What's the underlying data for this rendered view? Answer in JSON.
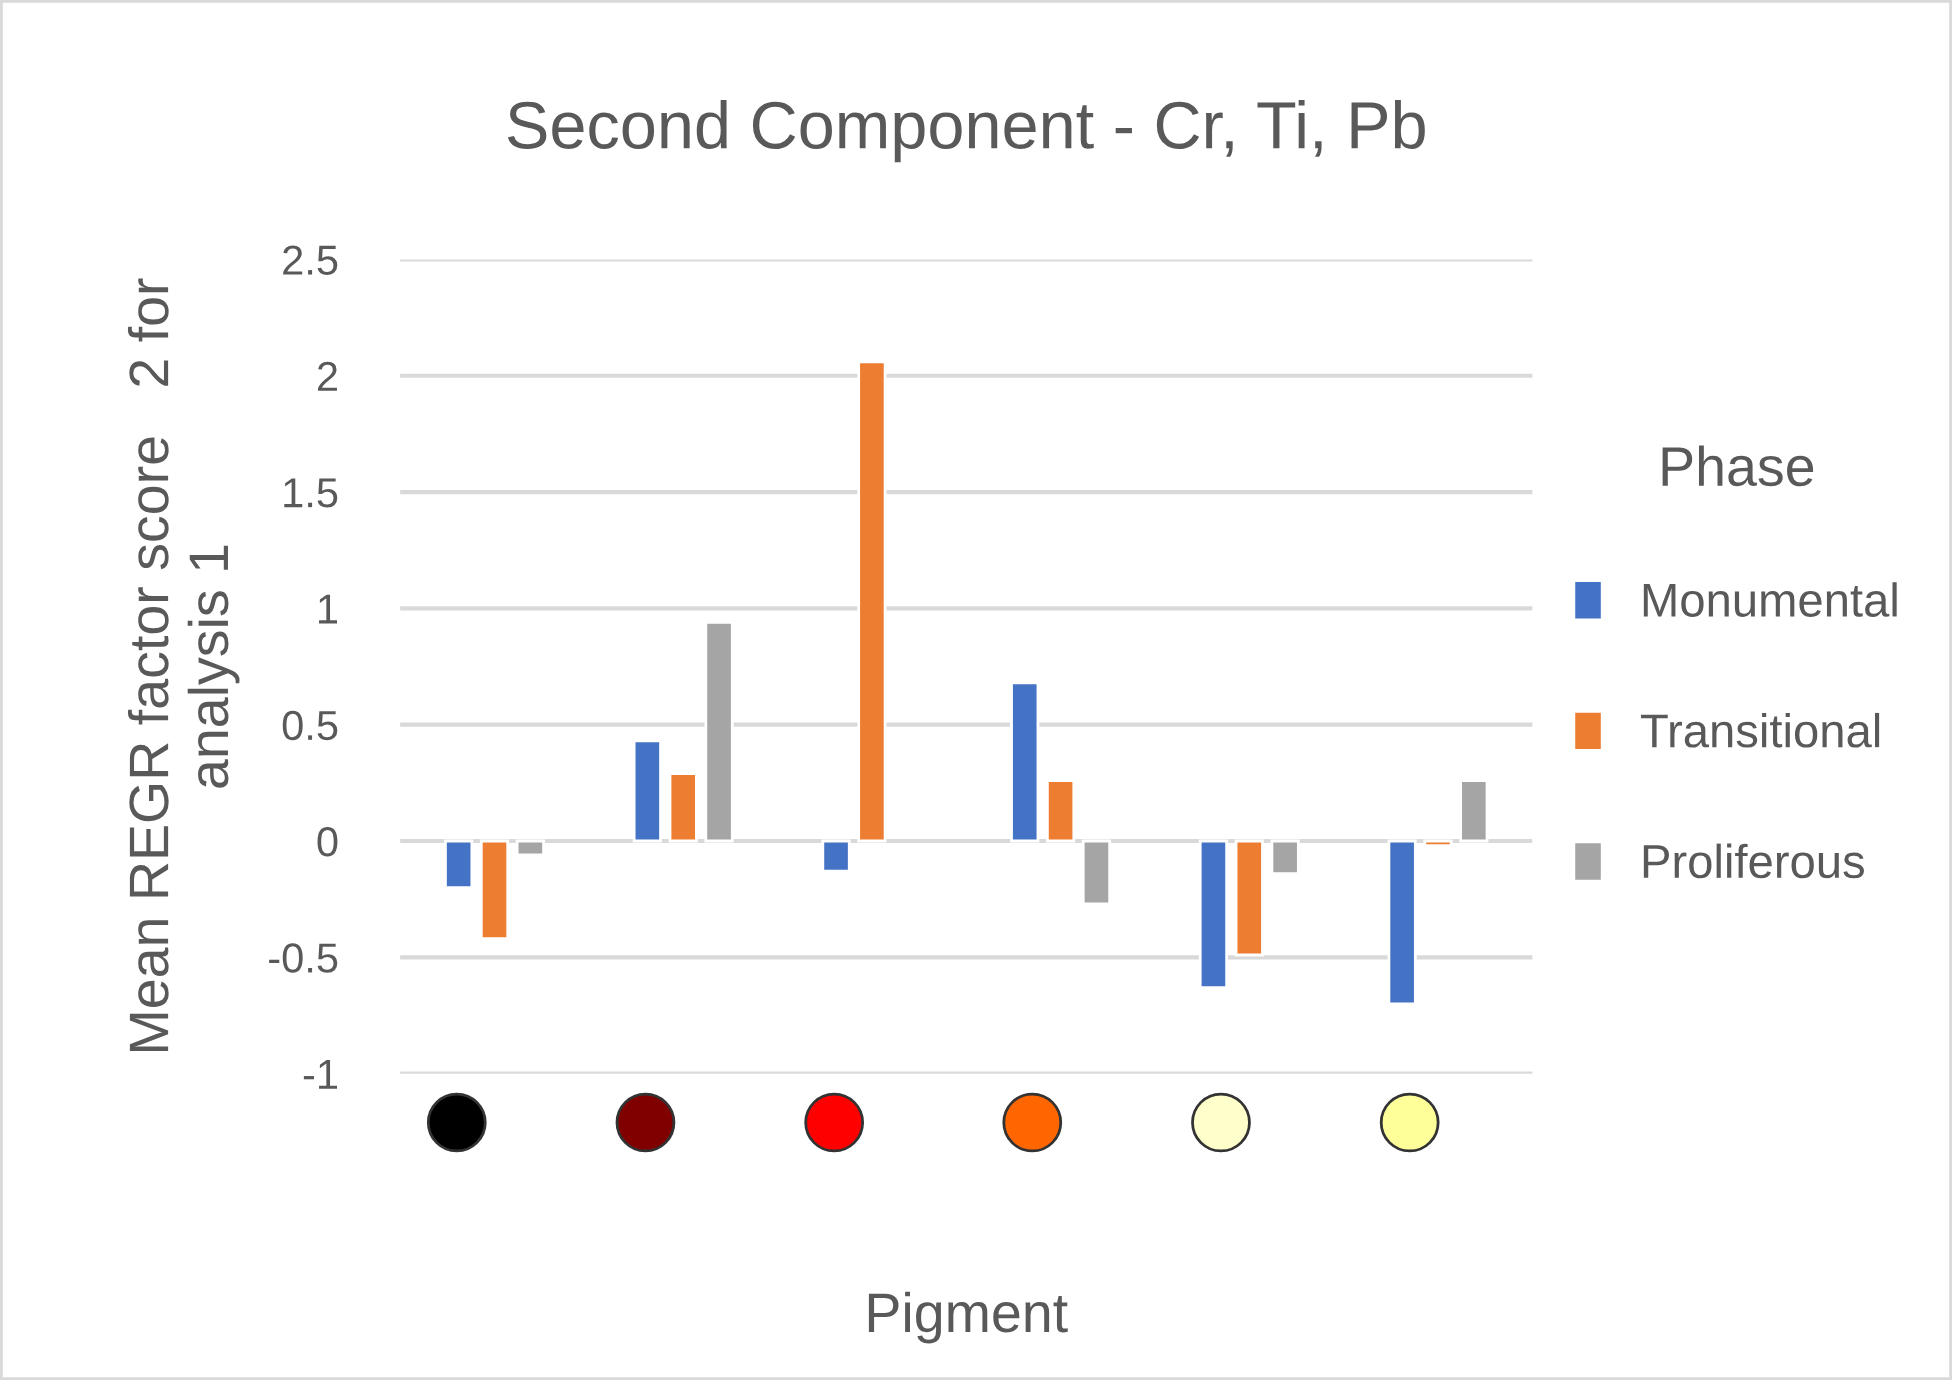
{
  "chart_data": {
    "type": "bar",
    "title": "Second Component - Cr, Ti, Pb",
    "xlabel": "Pigment",
    "ylabel": "Mean REGR factor score   2 for\nanalysis 1",
    "legend_title": "Phase",
    "categories": [
      null,
      null,
      null,
      null,
      null,
      null
    ],
    "series": [
      {
        "name": "Monumental",
        "color": "#4472c4",
        "values": [
          -0.2,
          0.43,
          -0.13,
          0.68,
          -0.63,
          -0.7
        ]
      },
      {
        "name": "Transitional",
        "color": "#ed7d31",
        "values": [
          -0.42,
          0.29,
          2.06,
          0.26,
          -0.49,
          -0.02
        ]
      },
      {
        "name": "Proliferous",
        "color": "#a5a5a5",
        "values": [
          -0.06,
          0.94,
          null,
          -0.27,
          -0.14,
          0.26
        ]
      }
    ],
    "ylim": [
      -1,
      2.5
    ],
    "yticks": [
      {
        "value": -1,
        "label": "-1"
      },
      {
        "value": -0.5,
        "label": "-0.5"
      },
      0,
      0.5,
      1,
      1.5,
      2,
      2.5
    ],
    "grid": "y",
    "legend": "right"
  }
}
